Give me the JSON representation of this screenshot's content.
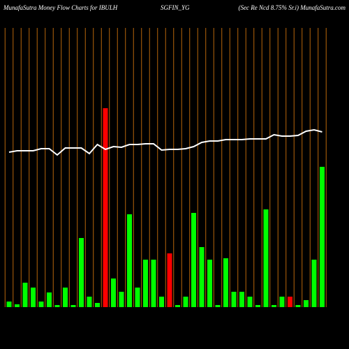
{
  "chart_data": {
    "type": "bar",
    "title": [
      "MunafaSutra  Money Flow  Charts for IBULH",
      "SGFIN_YG",
      "(Sec Re   Ncd 8.75% Sr.i) MunafaSutra.com"
    ],
    "categories": [
      null,
      null,
      null,
      null,
      null,
      null,
      null,
      null,
      null,
      null,
      null,
      null,
      null,
      null,
      null,
      null,
      null,
      null,
      null,
      null,
      null,
      null,
      null,
      null,
      null,
      null,
      null,
      null,
      null,
      null,
      null,
      null,
      null,
      null,
      null,
      null,
      null,
      null,
      null,
      null
    ],
    "bars": {
      "values": [
        8,
        4,
        35,
        28,
        8,
        21,
        3,
        28,
        3,
        99,
        15,
        6,
        285,
        41,
        22,
        133,
        28,
        68,
        68,
        15,
        77,
        3,
        15,
        135,
        86,
        68,
        3,
        70,
        22,
        22,
        15,
        3,
        140,
        3,
        15,
        15,
        3,
        10,
        68,
        201
      ],
      "colors": [
        "#00ff00",
        "#00ff00",
        "#00ff00",
        "#00ff00",
        "#00ff00",
        "#00ff00",
        "#00ff00",
        "#00ff00",
        "#00ff00",
        "#00ff00",
        "#00ff00",
        "#00ff00",
        "#ff0000",
        "#00ff00",
        "#00ff00",
        "#00ff00",
        "#00ff00",
        "#00ff00",
        "#00ff00",
        "#00ff00",
        "#ff0000",
        "#00ff00",
        "#00ff00",
        "#00ff00",
        "#00ff00",
        "#00ff00",
        "#00ff00",
        "#00ff00",
        "#00ff00",
        "#00ff00",
        "#00ff00",
        "#00ff00",
        "#00ff00",
        "#00ff00",
        "#00ff00",
        "#ff0000",
        "#00ff00",
        "#00ff00",
        "#00ff00",
        "#00ff00"
      ]
    },
    "line": {
      "values": [
        222,
        224,
        224,
        224,
        227,
        227,
        218,
        228,
        228,
        228,
        220,
        233,
        226,
        230,
        229,
        233,
        233,
        234,
        234,
        225,
        226,
        226,
        227,
        230,
        236,
        238,
        238,
        240,
        240,
        240,
        241,
        241,
        241,
        247,
        245,
        245,
        246,
        252,
        254,
        251
      ],
      "color": "#ffffff"
    },
    "ylim": [
      0,
      400
    ],
    "grid": true,
    "grid_color": "#b8660a"
  }
}
